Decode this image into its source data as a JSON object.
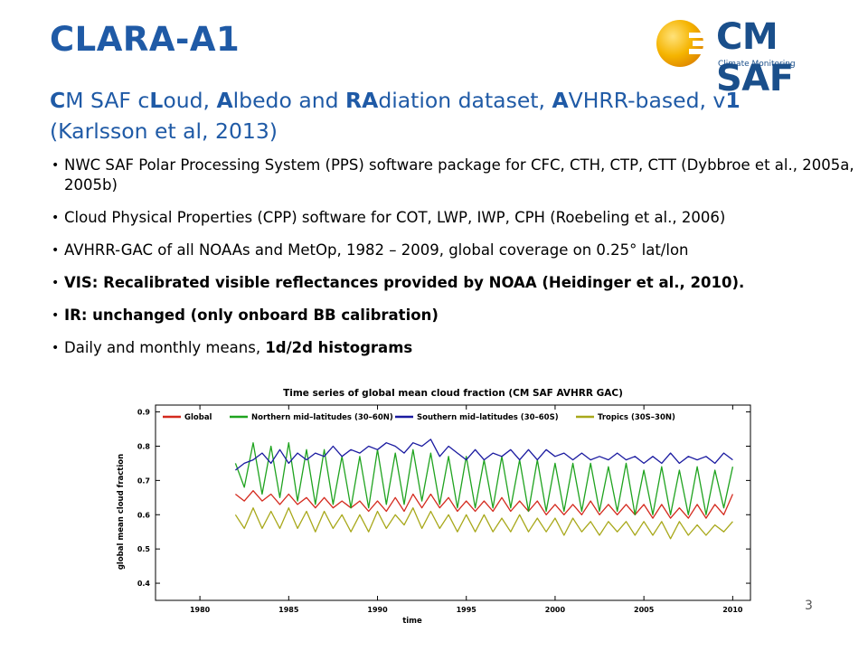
{
  "slide": {
    "title": "CLARA-A1",
    "subtitle": {
      "line1": [
        {
          "text": "C",
          "bold": true
        },
        {
          "text": "M SAF c",
          "bold": false
        },
        {
          "text": "L",
          "bold": true
        },
        {
          "text": "oud, ",
          "bold": false
        },
        {
          "text": "A",
          "bold": true
        },
        {
          "text": "lbedo and ",
          "bold": false
        },
        {
          "text": "RA",
          "bold": true
        },
        {
          "text": "diation dataset, ",
          "bold": false
        },
        {
          "text": "A",
          "bold": true
        },
        {
          "text": "VHRR-based, v",
          "bold": false
        },
        {
          "text": "1",
          "bold": true
        }
      ],
      "line2": "(Karlsson et al, 2013)"
    },
    "bullets": [
      {
        "parts": [
          {
            "text": "NWC SAF Polar Processing System (PPS) software package for CFC, CTH, CTP, CTT (Dybbroe et al., 2005a, 2005b)",
            "bold": false
          }
        ]
      },
      {
        "parts": [
          {
            "text": "Cloud Physical Properties (CPP) software for COT, LWP, IWP, CPH (Roebeling et al., 2006)",
            "bold": false
          }
        ]
      },
      {
        "parts": [
          {
            "text": "AVHRR-GAC of all NOAAs and MetOp, 1982 – 2009, global coverage on 0.25° lat/lon",
            "bold": false
          }
        ]
      },
      {
        "parts": [
          {
            "text": "VIS: Recalibrated visible reflectances provided by NOAA (Heidinger et al., 2010).",
            "bold": true
          }
        ]
      },
      {
        "parts": [
          {
            "text": "IR: unchanged (only onboard BB calibration)",
            "bold": true
          }
        ]
      },
      {
        "parts": [
          {
            "text": "Daily and monthly means, ",
            "bold": false
          },
          {
            "text": "1d/2d histograms",
            "bold": true
          }
        ]
      }
    ],
    "page_number": "3"
  },
  "logo": {
    "name": "CM SAF",
    "tagline": "Climate Monitoring",
    "icon": "sun-logo-icon",
    "color": "#1a4f8b",
    "sun_color": "#f2a900"
  },
  "colors": {
    "title": "#1f5aa6",
    "text": "#000000"
  },
  "chart_data": {
    "type": "line",
    "title": "Time series of global mean cloud fraction (CM SAF AVHRR GAC)",
    "xlabel": "time",
    "ylabel": "global mean cloud fraction",
    "xlim": [
      1977.5,
      2011
    ],
    "ylim": [
      0.35,
      0.92
    ],
    "xticks": [
      1980,
      1985,
      1990,
      1995,
      2000,
      2005,
      2010
    ],
    "yticks": [
      0.4,
      0.5,
      0.6,
      0.7,
      0.8,
      0.9
    ],
    "grid": false,
    "legend": "top",
    "series": [
      {
        "name": "Global",
        "color": "#d42a1e",
        "x": [
          1982.0,
          1982.5,
          1983.0,
          1983.5,
          1984.0,
          1984.5,
          1985.0,
          1985.5,
          1986.0,
          1986.5,
          1987.0,
          1987.5,
          1988.0,
          1988.5,
          1989.0,
          1989.5,
          1990.0,
          1990.5,
          1991.0,
          1991.5,
          1992.0,
          1992.5,
          1993.0,
          1993.5,
          1994.0,
          1994.5,
          1995.0,
          1995.5,
          1996.0,
          1996.5,
          1997.0,
          1997.5,
          1998.0,
          1998.5,
          1999.0,
          1999.5,
          2000.0,
          2000.5,
          2001.0,
          2001.5,
          2002.0,
          2002.5,
          2003.0,
          2003.5,
          2004.0,
          2004.5,
          2005.0,
          2005.5,
          2006.0,
          2006.5,
          2007.0,
          2007.5,
          2008.0,
          2008.5,
          2009.0,
          2009.5,
          2010.0
        ],
        "y": [
          0.66,
          0.64,
          0.67,
          0.64,
          0.66,
          0.63,
          0.66,
          0.63,
          0.65,
          0.62,
          0.65,
          0.62,
          0.64,
          0.62,
          0.64,
          0.61,
          0.64,
          0.61,
          0.65,
          0.61,
          0.66,
          0.62,
          0.66,
          0.62,
          0.65,
          0.61,
          0.64,
          0.61,
          0.64,
          0.61,
          0.65,
          0.61,
          0.64,
          0.61,
          0.64,
          0.6,
          0.63,
          0.6,
          0.63,
          0.6,
          0.64,
          0.6,
          0.63,
          0.6,
          0.63,
          0.6,
          0.63,
          0.59,
          0.63,
          0.59,
          0.62,
          0.59,
          0.63,
          0.59,
          0.63,
          0.6,
          0.66
        ]
      },
      {
        "name": "Northern mid–latitudes (30–60N)",
        "color": "#1fa31f",
        "x": [
          1982.0,
          1982.5,
          1983.0,
          1983.5,
          1984.0,
          1984.5,
          1985.0,
          1985.5,
          1986.0,
          1986.5,
          1987.0,
          1987.5,
          1988.0,
          1988.5,
          1989.0,
          1989.5,
          1990.0,
          1990.5,
          1991.0,
          1991.5,
          1992.0,
          1992.5,
          1993.0,
          1993.5,
          1994.0,
          1994.5,
          1995.0,
          1995.5,
          1996.0,
          1996.5,
          1997.0,
          1997.5,
          1998.0,
          1998.5,
          1999.0,
          1999.5,
          2000.0,
          2000.5,
          2001.0,
          2001.5,
          2002.0,
          2002.5,
          2003.0,
          2003.5,
          2004.0,
          2004.5,
          2005.0,
          2005.5,
          2006.0,
          2006.5,
          2007.0,
          2007.5,
          2008.0,
          2008.5,
          2009.0,
          2009.5,
          2010.0
        ],
        "y": [
          0.75,
          0.68,
          0.81,
          0.66,
          0.8,
          0.65,
          0.81,
          0.64,
          0.79,
          0.63,
          0.79,
          0.63,
          0.77,
          0.62,
          0.77,
          0.62,
          0.79,
          0.63,
          0.78,
          0.63,
          0.79,
          0.64,
          0.78,
          0.63,
          0.77,
          0.62,
          0.77,
          0.62,
          0.76,
          0.62,
          0.77,
          0.62,
          0.76,
          0.61,
          0.76,
          0.61,
          0.75,
          0.61,
          0.75,
          0.61,
          0.75,
          0.61,
          0.74,
          0.61,
          0.75,
          0.6,
          0.73,
          0.6,
          0.74,
          0.6,
          0.73,
          0.6,
          0.74,
          0.6,
          0.73,
          0.62,
          0.74
        ]
      },
      {
        "name": "Southern mid–latitudes (30–60S)",
        "color": "#1a1aa0",
        "x": [
          1982.0,
          1982.5,
          1983.0,
          1983.5,
          1984.0,
          1984.5,
          1985.0,
          1985.5,
          1986.0,
          1986.5,
          1987.0,
          1987.5,
          1988.0,
          1988.5,
          1989.0,
          1989.5,
          1990.0,
          1990.5,
          1991.0,
          1991.5,
          1992.0,
          1992.5,
          1993.0,
          1993.5,
          1994.0,
          1994.5,
          1995.0,
          1995.5,
          1996.0,
          1996.5,
          1997.0,
          1997.5,
          1998.0,
          1998.5,
          1999.0,
          1999.5,
          2000.0,
          2000.5,
          2001.0,
          2001.5,
          2002.0,
          2002.5,
          2003.0,
          2003.5,
          2004.0,
          2004.5,
          2005.0,
          2005.5,
          2006.0,
          2006.5,
          2007.0,
          2007.5,
          2008.0,
          2008.5,
          2009.0,
          2009.5,
          2010.0
        ],
        "y": [
          0.73,
          0.75,
          0.76,
          0.78,
          0.75,
          0.79,
          0.75,
          0.78,
          0.76,
          0.78,
          0.77,
          0.8,
          0.77,
          0.79,
          0.78,
          0.8,
          0.79,
          0.81,
          0.8,
          0.78,
          0.81,
          0.8,
          0.82,
          0.77,
          0.8,
          0.78,
          0.76,
          0.79,
          0.76,
          0.78,
          0.77,
          0.79,
          0.76,
          0.79,
          0.76,
          0.79,
          0.77,
          0.78,
          0.76,
          0.78,
          0.76,
          0.77,
          0.76,
          0.78,
          0.76,
          0.77,
          0.75,
          0.77,
          0.75,
          0.78,
          0.75,
          0.77,
          0.76,
          0.77,
          0.75,
          0.78,
          0.76
        ]
      },
      {
        "name": "Tropics (30S–30N)",
        "color": "#a8a81a",
        "x": [
          1982.0,
          1982.5,
          1983.0,
          1983.5,
          1984.0,
          1984.5,
          1985.0,
          1985.5,
          1986.0,
          1986.5,
          1987.0,
          1987.5,
          1988.0,
          1988.5,
          1989.0,
          1989.5,
          1990.0,
          1990.5,
          1991.0,
          1991.5,
          1992.0,
          1992.5,
          1993.0,
          1993.5,
          1994.0,
          1994.5,
          1995.0,
          1995.5,
          1996.0,
          1996.5,
          1997.0,
          1997.5,
          1998.0,
          1998.5,
          1999.0,
          1999.5,
          2000.0,
          2000.5,
          2001.0,
          2001.5,
          2002.0,
          2002.5,
          2003.0,
          2003.5,
          2004.0,
          2004.5,
          2005.0,
          2005.5,
          2006.0,
          2006.5,
          2007.0,
          2007.5,
          2008.0,
          2008.5,
          2009.0,
          2009.5,
          2010.0
        ],
        "y": [
          0.6,
          0.56,
          0.62,
          0.56,
          0.61,
          0.56,
          0.62,
          0.56,
          0.61,
          0.55,
          0.61,
          0.56,
          0.6,
          0.55,
          0.6,
          0.55,
          0.61,
          0.56,
          0.6,
          0.57,
          0.62,
          0.56,
          0.61,
          0.56,
          0.6,
          0.55,
          0.6,
          0.55,
          0.6,
          0.55,
          0.59,
          0.55,
          0.6,
          0.55,
          0.59,
          0.55,
          0.59,
          0.54,
          0.59,
          0.55,
          0.58,
          0.54,
          0.58,
          0.55,
          0.58,
          0.54,
          0.58,
          0.54,
          0.58,
          0.53,
          0.58,
          0.54,
          0.57,
          0.54,
          0.57,
          0.55,
          0.58
        ]
      }
    ]
  }
}
